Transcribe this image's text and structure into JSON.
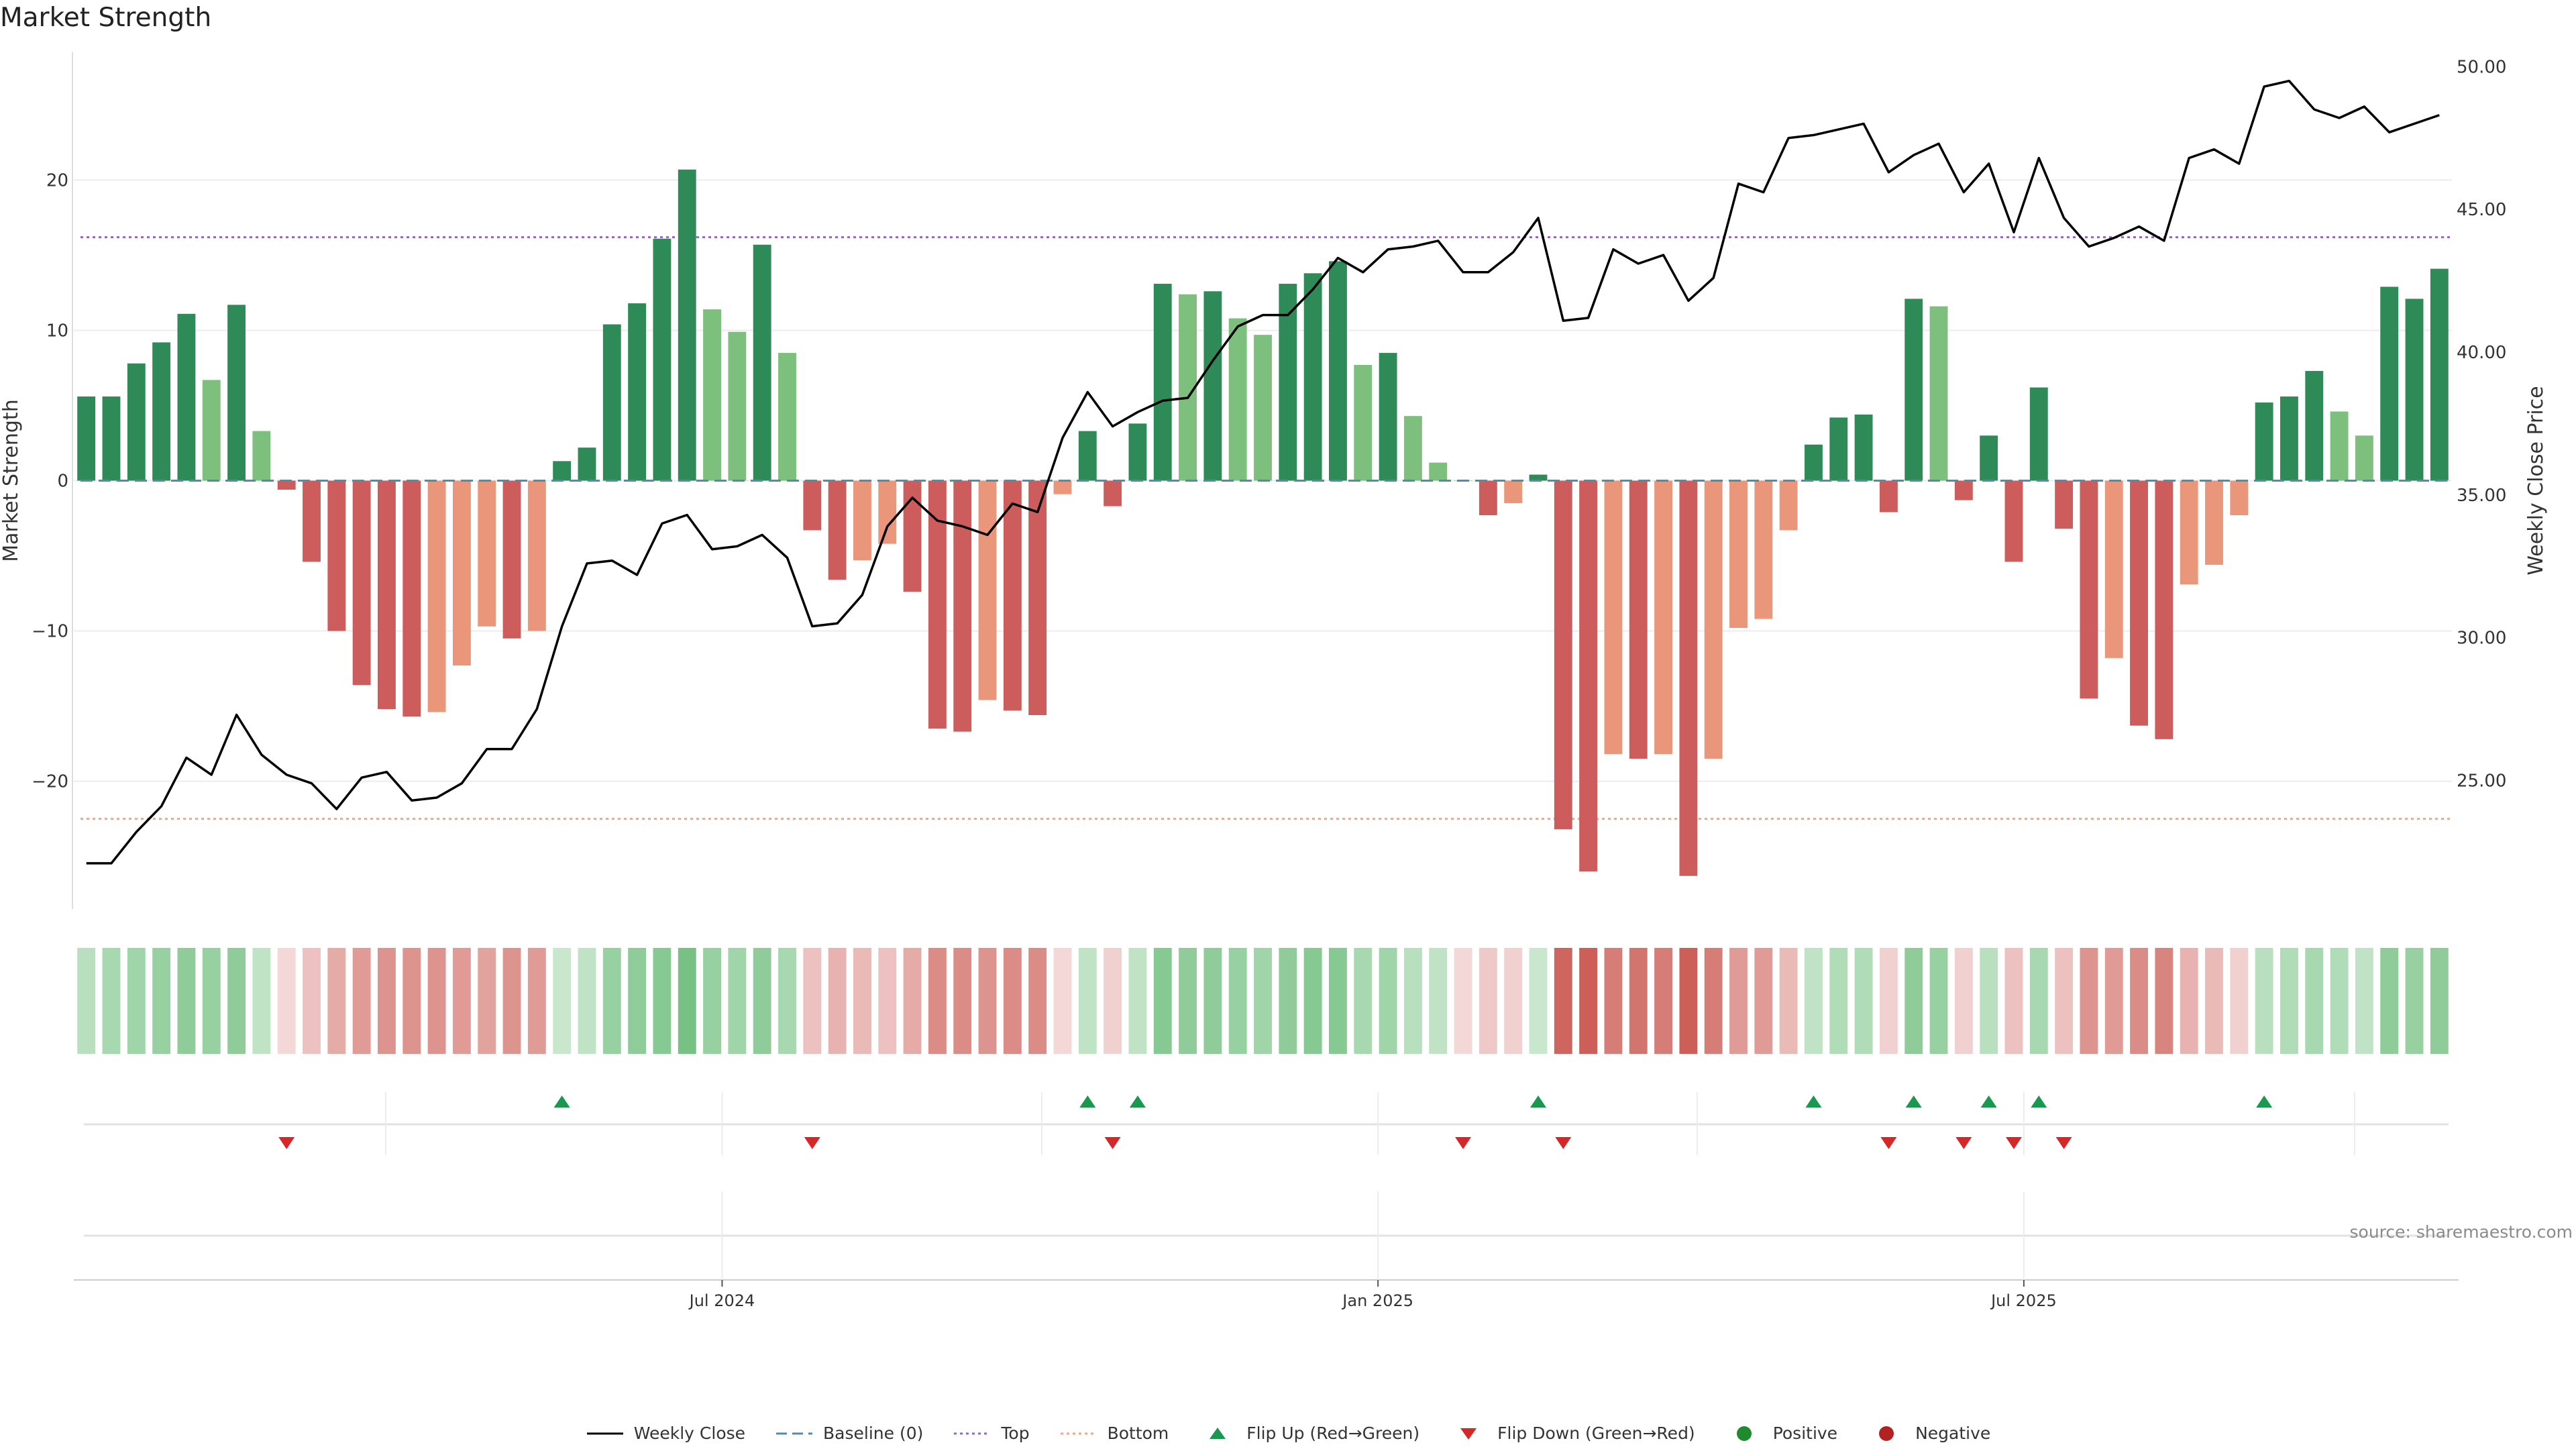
{
  "title": "Market Strength",
  "source": "source: sharemaestro.com",
  "colors": {
    "strong_green": "#2e8b57",
    "light_green": "#7dbf7d",
    "strong_red": "#cd5c5c",
    "light_red": "#e9967a",
    "price_line": "#000000",
    "baseline": "#4f8ea3",
    "top": "#9467bd",
    "bottom": "#f4a582",
    "flip_up": "#1a9850",
    "flip_down": "#d62728",
    "positive": "#1f8a2e",
    "negative": "#b22222"
  },
  "legend": [
    {
      "key": "close",
      "label": "Weekly Close"
    },
    {
      "key": "baseline",
      "label": "Baseline (0)"
    },
    {
      "key": "top",
      "label": "Top"
    },
    {
      "key": "bottom",
      "label": "Bottom"
    },
    {
      "key": "flip_up",
      "label": "Flip Up (Red→Green)"
    },
    {
      "key": "flip_down",
      "label": "Flip Down (Green→Red)"
    },
    {
      "key": "positive",
      "label": "Positive"
    },
    {
      "key": "negative",
      "label": "Negative"
    }
  ],
  "chart_data": {
    "type": "bar",
    "title": "Market Strength",
    "ylabel": "Market Strength",
    "y2label": "Weekly Close Price",
    "ylim": [
      -28.5,
      28.5
    ],
    "y2lim": [
      20.5,
      50.5
    ],
    "yticks": [
      -20,
      -10,
      0,
      10,
      20
    ],
    "yticklabels": [
      "−20",
      "−10",
      "0",
      "10",
      "20"
    ],
    "y2ticks": [
      25,
      30,
      35,
      40,
      45,
      50
    ],
    "y2ticklabels": [
      "25.00",
      "30.00",
      "35.00",
      "40.00",
      "45.00",
      "50.00"
    ],
    "top_level": 16.2,
    "bottom_level": -22.5,
    "baseline": 0,
    "x_start": "2024-01-05",
    "x_end": "2025-12-05",
    "xticks": [
      {
        "label": "Jul 2024",
        "week": 25.4
      },
      {
        "label": "Jan 2025",
        "week": 51.6
      },
      {
        "label": "Jul 2025",
        "week": 77.4
      }
    ],
    "strength": [
      5.6,
      5.6,
      7.8,
      9.2,
      11.1,
      6.7,
      11.7,
      3.3,
      -0.6,
      -5.4,
      -10.0,
      -13.6,
      -15.2,
      -15.7,
      -15.4,
      -12.3,
      -9.7,
      -10.5,
      -10.0,
      1.3,
      2.2,
      10.4,
      11.8,
      16.1,
      20.7,
      11.4,
      9.9,
      15.7,
      8.5,
      -3.3,
      -6.6,
      -5.3,
      -4.2,
      -7.4,
      -16.5,
      -16.7,
      -14.6,
      -15.3,
      -15.6,
      -0.9,
      3.3,
      -1.7,
      3.8,
      13.1,
      12.4,
      12.6,
      10.8,
      9.7,
      13.1,
      13.8,
      14.6,
      7.7,
      8.5,
      4.3,
      1.2,
      0,
      -2.3,
      -1.5,
      0.4,
      -23.2,
      -26.0,
      -18.2,
      -18.5,
      -18.2,
      -26.3,
      -18.5,
      -9.8,
      -9.2,
      -3.3,
      2.4,
      4.2,
      4.4,
      -2.1,
      12.1,
      11.6,
      -1.3,
      3.0,
      -5.4,
      6.2,
      -3.2,
      -14.5,
      -11.8,
      -16.3,
      -17.2,
      -6.9,
      -5.6,
      -2.3,
      5.2,
      5.6,
      7.3,
      4.6,
      3.0,
      12.9,
      12.1,
      14.1
    ],
    "shade": [
      1,
      1,
      1,
      1,
      1,
      0,
      1,
      0,
      1,
      1,
      1,
      1,
      1,
      1,
      0,
      0,
      0,
      1,
      0,
      1,
      1,
      1,
      1,
      1,
      1,
      0,
      0,
      1,
      0,
      1,
      1,
      0,
      0,
      1,
      1,
      1,
      0,
      1,
      1,
      0,
      1,
      1,
      1,
      1,
      0,
      1,
      0,
      0,
      1,
      1,
      1,
      0,
      1,
      0,
      0,
      0,
      1,
      0,
      1,
      1,
      1,
      0,
      1,
      0,
      1,
      0,
      0,
      0,
      0,
      1,
      1,
      1,
      1,
      1,
      0,
      1,
      1,
      1,
      1,
      1,
      1,
      0,
      1,
      1,
      0,
      0,
      0,
      1,
      1,
      1,
      0,
      0,
      1,
      1,
      1
    ],
    "close": [
      22.1,
      22.1,
      23.2,
      24.1,
      25.8,
      25.2,
      27.3,
      25.9,
      25.2,
      24.9,
      24.0,
      25.1,
      25.3,
      24.3,
      24.4,
      24.9,
      26.1,
      26.1,
      27.5,
      30.4,
      32.6,
      32.7,
      32.2,
      34.0,
      34.3,
      33.1,
      33.2,
      33.6,
      32.8,
      30.4,
      30.5,
      31.5,
      33.9,
      34.9,
      34.1,
      33.9,
      33.6,
      34.7,
      34.4,
      37.0,
      38.6,
      37.4,
      37.9,
      38.3,
      38.4,
      39.7,
      40.9,
      41.3,
      41.3,
      42.2,
      43.3,
      42.8,
      43.6,
      43.7,
      43.9,
      42.8,
      42.8,
      43.5,
      44.7,
      41.1,
      41.2,
      43.6,
      43.1,
      43.4,
      41.8,
      42.6,
      45.9,
      45.6,
      47.5,
      47.6,
      47.8,
      48.0,
      46.3,
      46.9,
      47.3,
      45.6,
      46.6,
      44.2,
      46.8,
      44.7,
      43.7,
      44.0,
      44.4,
      43.9,
      46.8,
      47.1,
      46.6,
      49.3,
      49.5,
      48.5,
      48.2,
      48.6,
      47.7,
      48.0,
      48.3
    ],
    "color_strip": [
      0.35,
      0.45,
      0.5,
      0.55,
      0.6,
      0.55,
      0.6,
      0.3,
      -0.15,
      -0.3,
      -0.45,
      -0.55,
      -0.6,
      -0.6,
      -0.6,
      -0.55,
      -0.5,
      -0.6,
      -0.55,
      0.25,
      0.3,
      0.55,
      0.6,
      0.65,
      0.75,
      0.55,
      0.5,
      0.6,
      0.45,
      -0.3,
      -0.4,
      -0.35,
      -0.3,
      -0.45,
      -0.65,
      -0.65,
      -0.6,
      -0.65,
      -0.65,
      -0.15,
      0.3,
      -0.2,
      0.3,
      0.65,
      0.6,
      0.6,
      0.55,
      0.5,
      0.6,
      0.65,
      0.65,
      0.45,
      0.5,
      0.35,
      0.3,
      -0.15,
      -0.25,
      -0.2,
      0.25,
      -0.9,
      -0.95,
      -0.75,
      -0.8,
      -0.75,
      -0.95,
      -0.75,
      -0.55,
      -0.55,
      -0.35,
      0.3,
      0.4,
      0.4,
      -0.2,
      0.6,
      0.55,
      -0.2,
      0.35,
      -0.3,
      0.45,
      -0.3,
      -0.6,
      -0.55,
      -0.65,
      -0.7,
      -0.4,
      -0.35,
      -0.2,
      0.35,
      0.4,
      0.45,
      0.4,
      0.3,
      0.6,
      0.55,
      0.6
    ],
    "flips_up": [
      19,
      40,
      42,
      58,
      69,
      73,
      76,
      78,
      87
    ],
    "flips_down": [
      8,
      29,
      41,
      55,
      59,
      72,
      75,
      77,
      79
    ]
  }
}
